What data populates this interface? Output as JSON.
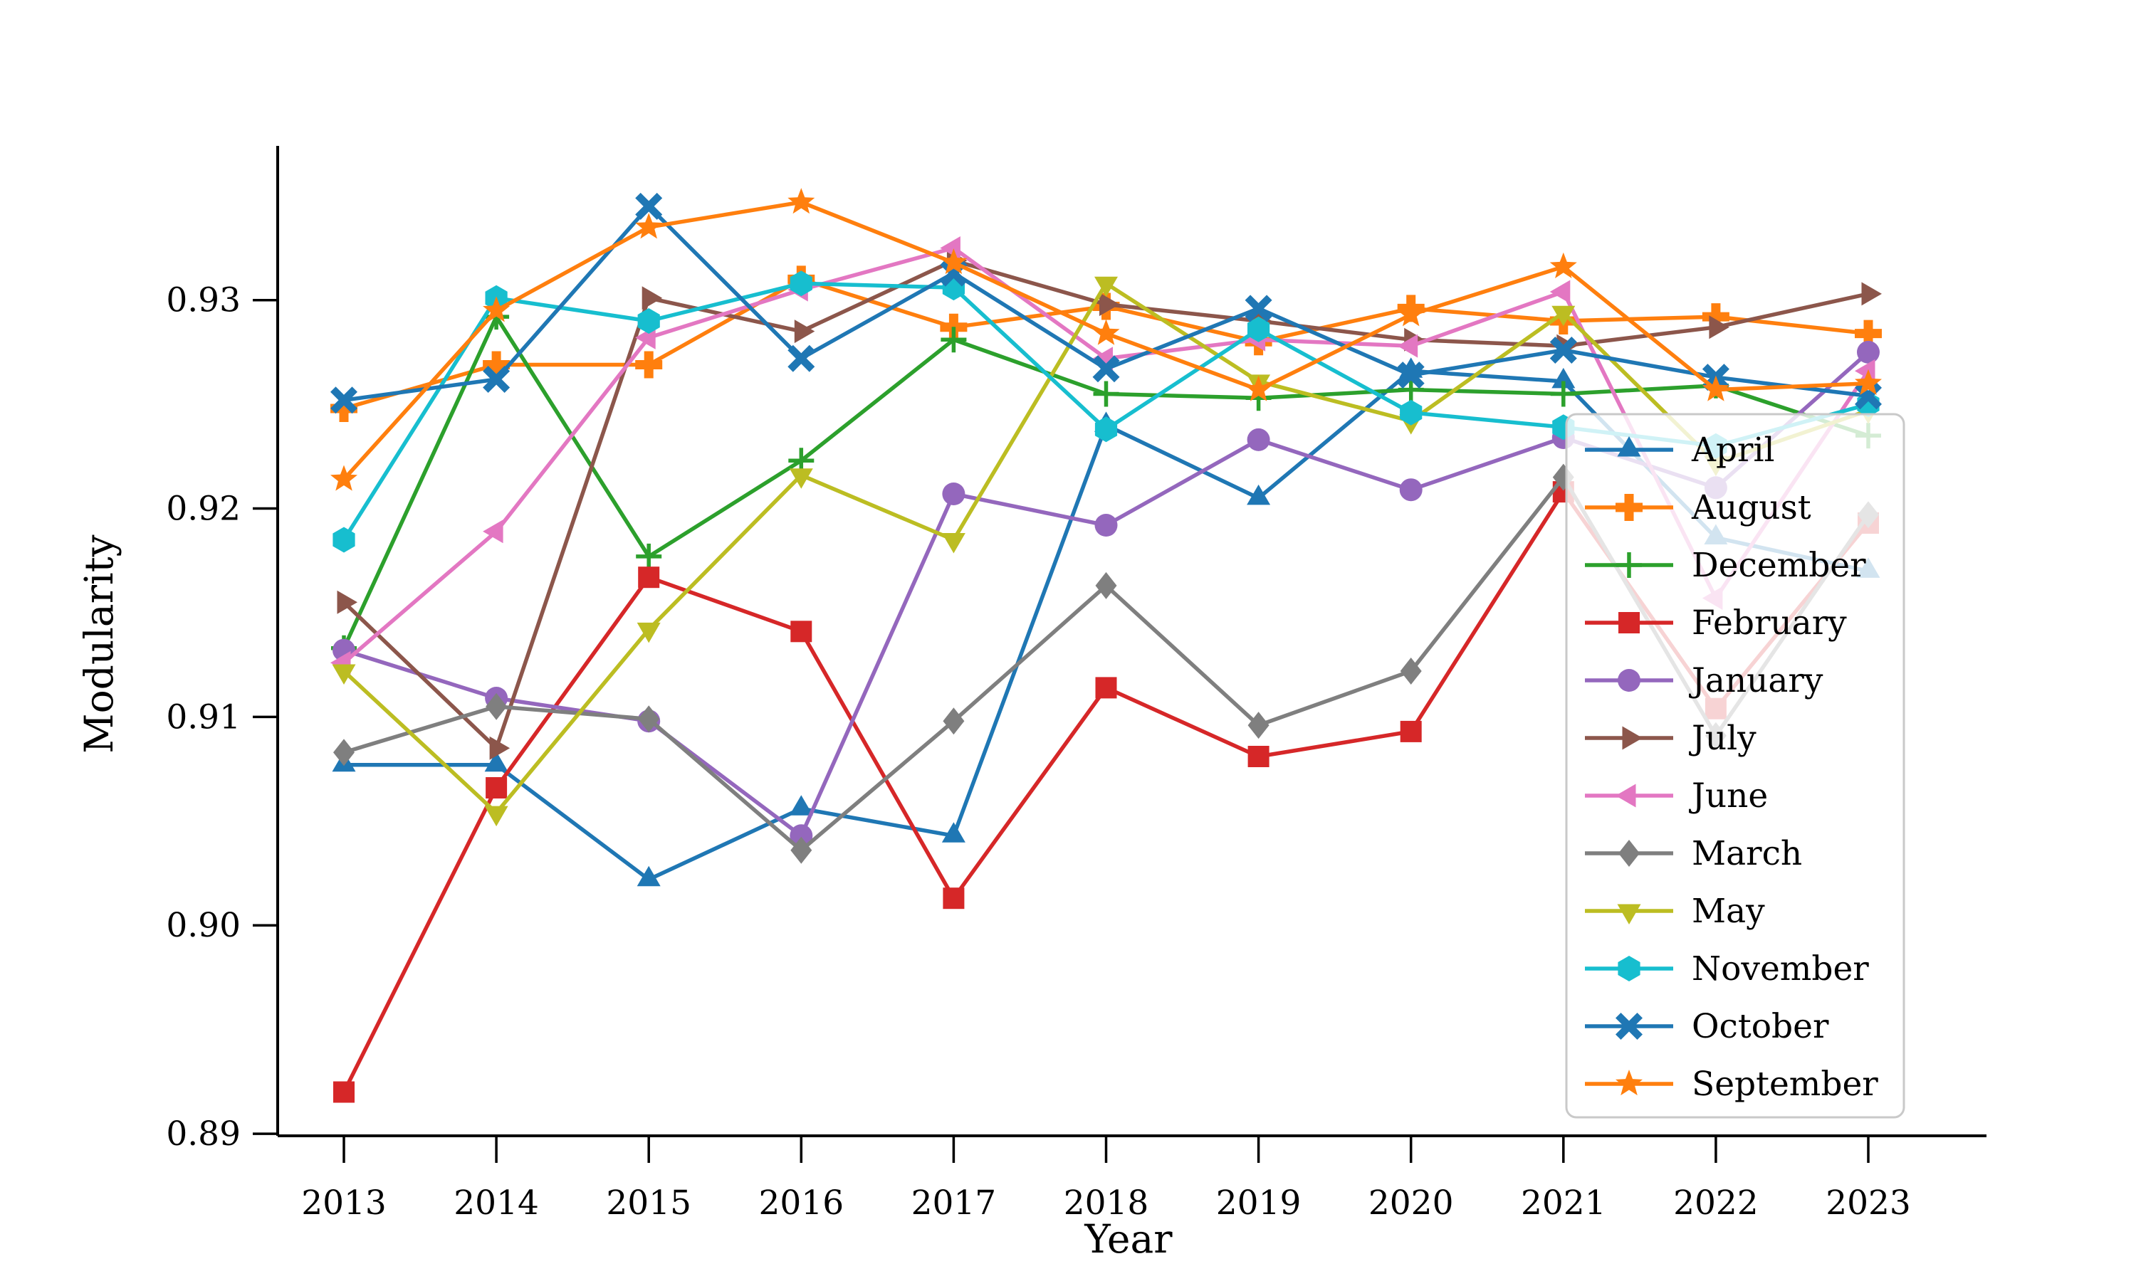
{
  "figure": {
    "background": "#ffffff",
    "axis_color": "#000000",
    "legend_border_color": "#c9c9c9",
    "legend_background": "rgba(255,255,255,0.8)"
  },
  "chart_data": {
    "type": "line",
    "title": "",
    "xlabel": "Year",
    "ylabel": "Modularity",
    "x": [
      2013,
      2014,
      2015,
      2016,
      2017,
      2018,
      2019,
      2020,
      2021,
      2022,
      2023
    ],
    "x_tick_labels": [
      "2013",
      "2014",
      "2015",
      "2016",
      "2017",
      "2018",
      "2019",
      "2020",
      "2021",
      "2022",
      "2023"
    ],
    "y_ticks": [
      0.89,
      0.9,
      0.91,
      0.92,
      0.93
    ],
    "y_tick_labels": [
      "0.89",
      "0.90",
      "0.91",
      "0.92",
      "0.93"
    ],
    "ylim": [
      0.8899,
      0.9374
    ],
    "grid": false,
    "legend_position": "center right",
    "series": [
      {
        "name": "April",
        "color": "#1f77b4",
        "marker": "triangle_up",
        "values": [
          0.9077,
          0.9077,
          0.9022,
          0.9056,
          0.9043,
          0.924,
          0.9205,
          0.9266,
          0.9261,
          0.9186,
          0.917
        ]
      },
      {
        "name": "August",
        "color": "#ff7f0e",
        "marker": "plus_filled",
        "values": [
          0.9248,
          0.9269,
          0.9269,
          0.931,
          0.9287,
          0.9297,
          0.928,
          0.9296,
          0.929,
          0.9292,
          0.9284
        ]
      },
      {
        "name": "December",
        "color": "#2ca02c",
        "marker": "plus_thin",
        "values": [
          0.9133,
          0.9292,
          0.9177,
          0.9223,
          0.9281,
          0.9255,
          0.9253,
          0.9257,
          0.9255,
          0.9259,
          0.9235
        ]
      },
      {
        "name": "February",
        "color": "#d62728",
        "marker": "square",
        "values": [
          0.892,
          0.9066,
          0.9167,
          0.9141,
          0.9013,
          0.9114,
          0.9081,
          0.9093,
          0.9208,
          0.9104,
          0.9193
        ]
      },
      {
        "name": "January",
        "color": "#9467bd",
        "marker": "circle",
        "values": [
          0.9132,
          0.9109,
          0.9098,
          0.9043,
          0.9207,
          0.9192,
          0.9233,
          0.9209,
          0.9234,
          0.921,
          0.9275
        ]
      },
      {
        "name": "July",
        "color": "#8c564b",
        "marker": "triangle_right",
        "values": [
          0.9155,
          0.9085,
          0.9301,
          0.9285,
          0.9319,
          0.9298,
          0.929,
          0.9281,
          0.9278,
          0.9287,
          0.9303
        ]
      },
      {
        "name": "June",
        "color": "#e377c2",
        "marker": "triangle_left",
        "values": [
          0.9126,
          0.9189,
          0.9282,
          0.9305,
          0.9325,
          0.9272,
          0.9281,
          0.9278,
          0.9304,
          0.9157,
          0.9266
        ]
      },
      {
        "name": "March",
        "color": "#7f7f7f",
        "marker": "diamond",
        "values": [
          0.9083,
          0.9105,
          0.9099,
          0.9036,
          0.9098,
          0.9163,
          0.9096,
          0.9122,
          0.9215,
          0.9091,
          0.9197
        ]
      },
      {
        "name": "May",
        "color": "#bcbd22",
        "marker": "triangle_down",
        "values": [
          0.9122,
          0.9054,
          0.9142,
          0.9216,
          0.9185,
          0.9308,
          0.9261,
          0.9242,
          0.9294,
          0.9222,
          0.9247
        ]
      },
      {
        "name": "November",
        "color": "#17becf",
        "marker": "hexagon",
        "values": [
          0.9185,
          0.9301,
          0.929,
          0.9308,
          0.9306,
          0.9238,
          0.9286,
          0.9246,
          0.9239,
          0.923,
          0.925
        ]
      },
      {
        "name": "October",
        "color": "#1f77b4",
        "marker": "x_filled",
        "values": [
          0.9252,
          0.9262,
          0.9345,
          0.9272,
          0.9313,
          0.9267,
          0.9296,
          0.9264,
          0.9276,
          0.9263,
          0.9254
        ]
      },
      {
        "name": "September",
        "color": "#ff7f0e",
        "marker": "star",
        "values": [
          0.9214,
          0.9295,
          0.9335,
          0.9347,
          0.9318,
          0.9284,
          0.9257,
          0.9293,
          0.9316,
          0.9257,
          0.926
        ]
      }
    ]
  }
}
